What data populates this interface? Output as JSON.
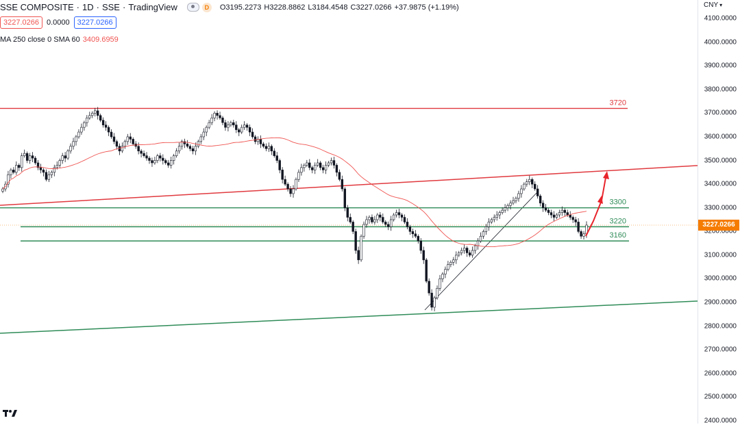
{
  "header": {
    "symbol": "SSE COMPOSITE",
    "interval": "1D",
    "exchange": "SSE",
    "source": "TradingView",
    "badge": "D",
    "ohlc": {
      "open_key": "O",
      "open": "3195.2273",
      "high_key": "H",
      "high": "3228.8862",
      "low_key": "L",
      "low": "3184.4548",
      "close_key": "C",
      "close": "3227.0266",
      "change": "+37.9875 (+1.19%)"
    },
    "sell_price": "3227.0266",
    "spread": "0.0000",
    "buy_price": "3227.0266",
    "ma_label": "MA 250 close 0 SMA 60",
    "ma_value": "3409.6959"
  },
  "price_scale": {
    "currency": "CNY",
    "ticks": [
      "4100.0000",
      "4000.0000",
      "3900.0000",
      "3800.0000",
      "3700.0000",
      "3600.0000",
      "3500.0000",
      "3400.0000",
      "3300.0000",
      "3200.0000",
      "3100.0000",
      "3000.0000",
      "2900.0000",
      "2800.0000",
      "2700.0000",
      "2600.0000",
      "2500.0000",
      "2400.0000"
    ],
    "last_price": "3227.0266"
  },
  "levels": [
    {
      "label": "3720",
      "value": 3720,
      "color": "#e0393e"
    },
    {
      "label": "3300",
      "value": 3300,
      "color": "#2e8b57"
    },
    {
      "label": "3220",
      "value": 3220,
      "color": "#2e8b57"
    },
    {
      "label": "3160",
      "value": 3160,
      "color": "#2e8b57"
    }
  ],
  "colors": {
    "up": "#ffffff",
    "down": "#131722",
    "ma": "#ef5350",
    "red_line": "#e0393e",
    "green_line": "#2e8b57",
    "arrow": "#e8232b",
    "last_price": "#f57c00"
  },
  "chart_data": {
    "type": "candlestick",
    "price_range": [
      2400,
      4100
    ],
    "candles_close": [
      3380,
      3400,
      3440,
      3460,
      3450,
      3480,
      3470,
      3520,
      3530,
      3500,
      3520,
      3510,
      3490,
      3470,
      3460,
      3450,
      3420,
      3440,
      3450,
      3470,
      3480,
      3500,
      3520,
      3510,
      3540,
      3560,
      3580,
      3600,
      3620,
      3640,
      3660,
      3680,
      3690,
      3700,
      3710,
      3690,
      3670,
      3650,
      3640,
      3620,
      3600,
      3580,
      3560,
      3540,
      3560,
      3580,
      3600,
      3590,
      3570,
      3560,
      3540,
      3530,
      3520,
      3510,
      3500,
      3490,
      3500,
      3520,
      3510,
      3500,
      3490,
      3480,
      3500,
      3520,
      3540,
      3560,
      3580,
      3570,
      3560,
      3550,
      3540,
      3560,
      3580,
      3600,
      3620,
      3640,
      3660,
      3680,
      3700,
      3690,
      3680,
      3660,
      3640,
      3650,
      3660,
      3650,
      3630,
      3620,
      3640,
      3650,
      3640,
      3620,
      3600,
      3580,
      3590,
      3570,
      3560,
      3550,
      3560,
      3540,
      3520,
      3500,
      3460,
      3420,
      3400,
      3380,
      3360,
      3380,
      3420,
      3450,
      3470,
      3480,
      3490,
      3470,
      3460,
      3480,
      3490,
      3470,
      3460,
      3480,
      3490,
      3500,
      3480,
      3450,
      3420,
      3380,
      3300,
      3260,
      3240,
      3200,
      3120,
      3080,
      3180,
      3230,
      3250,
      3260,
      3240,
      3250,
      3270,
      3260,
      3240,
      3230,
      3220,
      3250,
      3270,
      3280,
      3270,
      3260,
      3240,
      3220,
      3200,
      3190,
      3180,
      3160,
      3120,
      3080,
      2990,
      2940,
      2880,
      2920,
      2960,
      3000,
      3020,
      3040,
      3060,
      3070,
      3080,
      3100,
      3110,
      3120,
      3130,
      3110,
      3100,
      3120,
      3140,
      3160,
      3180,
      3200,
      3220,
      3240,
      3250,
      3260,
      3270,
      3280,
      3290,
      3300,
      3310,
      3320,
      3330,
      3340,
      3360,
      3380,
      3400,
      3410,
      3420,
      3400,
      3380,
      3350,
      3320,
      3300,
      3290,
      3280,
      3270,
      3260,
      3270,
      3280,
      3290,
      3280,
      3270,
      3260,
      3250,
      3240,
      3200,
      3180,
      3190,
      3227.0266
    ]
  }
}
